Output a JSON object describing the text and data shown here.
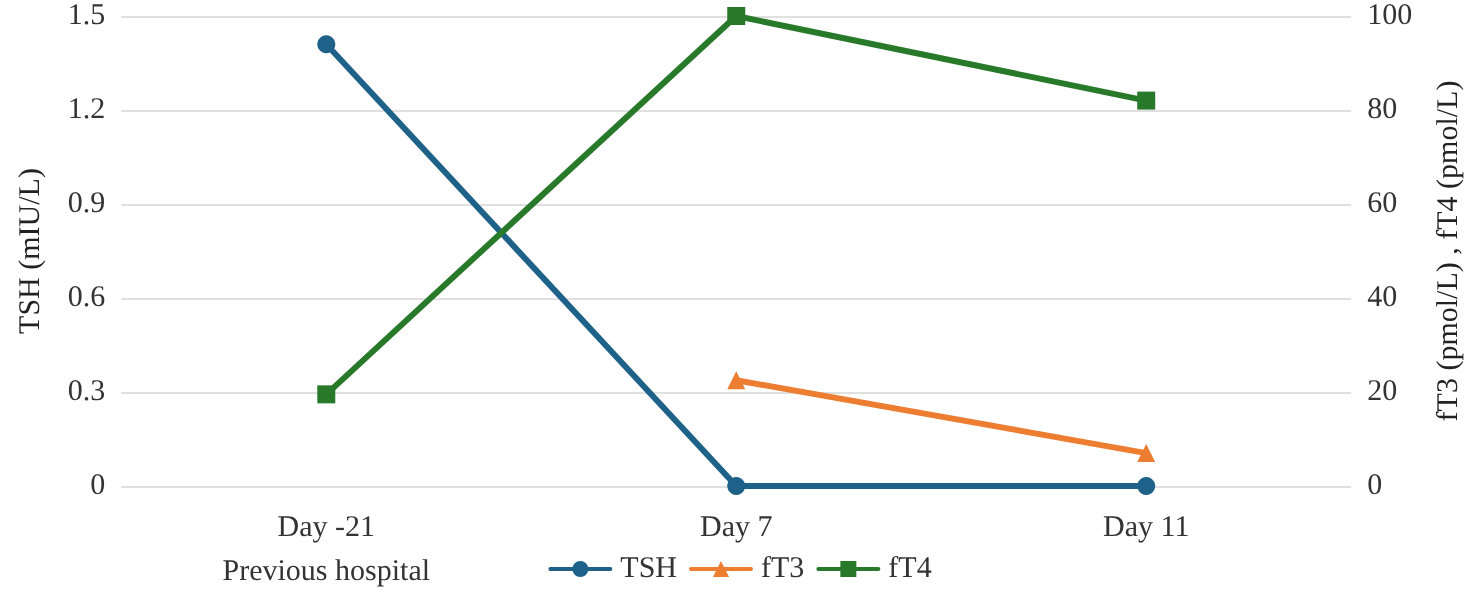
{
  "chart_data": {
    "type": "line",
    "ylabel": "TSH (mIU/L)",
    "y2label": "fT3 (pmol/L) , fT4 (pmol/L)",
    "categories": [
      "Day -21\nPrevious hospital",
      "Day 7",
      "Day 11"
    ],
    "series": [
      {
        "name": "TSH",
        "color": "#1e6289",
        "marker": "circle",
        "values": [
          1.41,
          0,
          0
        ]
      },
      {
        "name": "fT3",
        "color": "#ec7d31",
        "marker": "triangle",
        "axis": "y2",
        "values": [
          null,
          22.5,
          7
        ]
      },
      {
        "name": "fT4",
        "color": "#287a2a",
        "marker": "square",
        "axis": "y2",
        "values": [
          19.5,
          100,
          82
        ]
      }
    ],
    "ylim": [
      0,
      1.5
    ],
    "yticks": [
      0,
      0.3,
      0.6,
      0.9,
      1.2,
      1.5
    ],
    "y2lim": [
      0,
      100
    ],
    "y2ticks": [
      0,
      20,
      40,
      60,
      80,
      100
    ],
    "grid": "y",
    "legend": "bottom",
    "line_style": "solid"
  }
}
